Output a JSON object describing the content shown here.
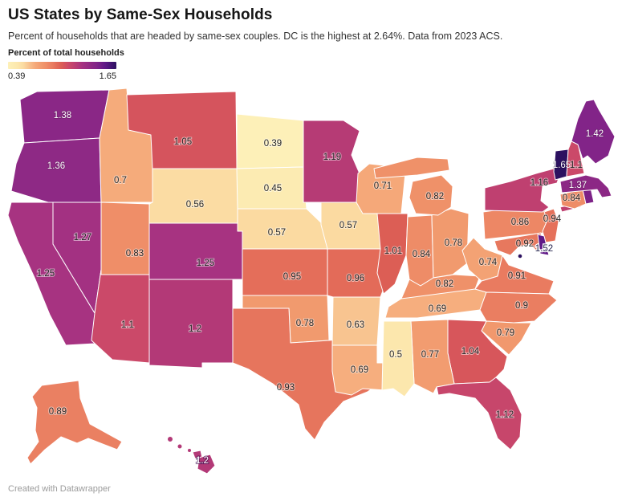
{
  "header": {
    "title": "US States by Same-Sex Households",
    "subtitle": "Percent of households that are headed by same-sex couples. DC is the highest at 2.64%. Data from 2023 ACS."
  },
  "legend": {
    "title": "Percent of total households",
    "min_label": "0.39",
    "max_label": "1.65"
  },
  "footer": {
    "credit": "Created with Datawrapper"
  },
  "chart_data": {
    "type": "choropleth",
    "title": "US States by Same-Sex Households",
    "unit": "percent of households headed by same-sex couples",
    "source_note": "Data from 2023 ACS",
    "scale": {
      "min": 0.39,
      "max": 1.65,
      "legend_position": "top-left",
      "gradient_stops": [
        [
          0.0,
          "#fdf0b8"
        ],
        [
          0.09,
          "#fce7ad"
        ],
        [
          0.14,
          "#fbdba2"
        ],
        [
          0.25,
          "#f5a97a"
        ],
        [
          0.31,
          "#f19a6e"
        ],
        [
          0.35,
          "#ef8e68"
        ],
        [
          0.41,
          "#e97c60"
        ],
        [
          0.45,
          "#e36c59"
        ],
        [
          0.49,
          "#dc5f55"
        ],
        [
          0.52,
          "#d6555c"
        ],
        [
          0.56,
          "#cc4a68"
        ],
        [
          0.61,
          "#bf4070"
        ],
        [
          0.64,
          "#b43a76"
        ],
        [
          0.68,
          "#a83381"
        ],
        [
          0.77,
          "#8e2985"
        ],
        [
          0.82,
          "#812488"
        ],
        [
          0.9,
          "#5e1887"
        ],
        [
          1.0,
          "#2c1160"
        ]
      ]
    },
    "states": [
      {
        "id": "WA",
        "name": "Washington",
        "value": 1.38,
        "label": "1.38",
        "label_style": "light"
      },
      {
        "id": "OR",
        "name": "Oregon",
        "value": 1.36,
        "label": "1.36",
        "label_style": "light"
      },
      {
        "id": "CA",
        "name": "California",
        "value": 1.25,
        "label": "1.25"
      },
      {
        "id": "NV",
        "name": "Nevada",
        "value": 1.27,
        "label": "1.27"
      },
      {
        "id": "ID",
        "name": "Idaho",
        "value": 0.7,
        "label": "0.7"
      },
      {
        "id": "MT",
        "name": "Montana",
        "value": 1.05,
        "label": "1.05"
      },
      {
        "id": "WY",
        "name": "Wyoming",
        "value": 0.56,
        "label": "0.56"
      },
      {
        "id": "UT",
        "name": "Utah",
        "value": 0.83,
        "label": "0.83"
      },
      {
        "id": "CO",
        "name": "Colorado",
        "value": 1.25,
        "label": "1.25"
      },
      {
        "id": "AZ",
        "name": "Arizona",
        "value": 1.1,
        "label": "1.1"
      },
      {
        "id": "NM",
        "name": "New Mexico",
        "value": 1.2,
        "label": "1.2"
      },
      {
        "id": "ND",
        "name": "North Dakota",
        "value": 0.39,
        "label": "0.39"
      },
      {
        "id": "SD",
        "name": "South Dakota",
        "value": 0.45,
        "label": "0.45"
      },
      {
        "id": "NE",
        "name": "Nebraska",
        "value": 0.57,
        "label": "0.57"
      },
      {
        "id": "KS",
        "name": "Kansas",
        "value": 0.95,
        "label": "0.95"
      },
      {
        "id": "OK",
        "name": "Oklahoma",
        "value": 0.78,
        "label": "0.78"
      },
      {
        "id": "TX",
        "name": "Texas",
        "value": 0.93,
        "label": "0.93"
      },
      {
        "id": "MN",
        "name": "Minnesota",
        "value": 1.19,
        "label": "1.19"
      },
      {
        "id": "IA",
        "name": "Iowa",
        "value": 0.57,
        "label": "0.57"
      },
      {
        "id": "MO",
        "name": "Missouri",
        "value": 0.96,
        "label": "0.96"
      },
      {
        "id": "AR",
        "name": "Arkansas",
        "value": 0.63,
        "label": "0.63"
      },
      {
        "id": "LA",
        "name": "Louisiana",
        "value": 0.69,
        "label": "0.69"
      },
      {
        "id": "WI",
        "name": "Wisconsin",
        "value": 0.71,
        "label": "0.71"
      },
      {
        "id": "IL",
        "name": "Illinois",
        "value": 1.01,
        "label": "1.01"
      },
      {
        "id": "MI",
        "name": "Michigan",
        "value": 0.82,
        "label": "0.82"
      },
      {
        "id": "IN",
        "name": "Indiana",
        "value": 0.84,
        "label": "0.84"
      },
      {
        "id": "OH",
        "name": "Ohio",
        "value": 0.78,
        "label": "0.78"
      },
      {
        "id": "KY",
        "name": "Kentucky",
        "value": 0.82,
        "label": "0.82"
      },
      {
        "id": "TN",
        "name": "Tennessee",
        "value": 0.69,
        "label": "0.69"
      },
      {
        "id": "MS",
        "name": "Mississippi",
        "value": 0.5,
        "label": "0.5"
      },
      {
        "id": "AL",
        "name": "Alabama",
        "value": 0.77,
        "label": "0.77"
      },
      {
        "id": "GA",
        "name": "Georgia",
        "value": 1.04,
        "label": "1.04"
      },
      {
        "id": "FL",
        "name": "Florida",
        "value": 1.12,
        "label": "1.12"
      },
      {
        "id": "SC",
        "name": "South Carolina",
        "value": 0.79,
        "label": "0.79"
      },
      {
        "id": "NC",
        "name": "North Carolina",
        "value": 0.9,
        "label": "0.9"
      },
      {
        "id": "VA",
        "name": "Virginia",
        "value": 0.91,
        "label": "0.91"
      },
      {
        "id": "WV",
        "name": "West Virginia",
        "value": 0.74,
        "label": "0.74"
      },
      {
        "id": "MD",
        "name": "Maryland",
        "value": 0.92,
        "label": "0.92"
      },
      {
        "id": "DE",
        "name": "Delaware",
        "value": 1.52,
        "label": "1.52",
        "label_style": "dark-halo"
      },
      {
        "id": "NJ",
        "name": "New Jersey",
        "value": 0.94,
        "label": "0.94"
      },
      {
        "id": "PA",
        "name": "Pennsylvania",
        "value": 0.86,
        "label": "0.86"
      },
      {
        "id": "NY",
        "name": "New York",
        "value": 1.16,
        "label": "1.16"
      },
      {
        "id": "CT",
        "name": "Connecticut",
        "value": 0.84,
        "label": "0.84"
      },
      {
        "id": "RI",
        "name": "Rhode Island",
        "value": null,
        "label": "",
        "fill": "#7d2287"
      },
      {
        "id": "MA",
        "name": "Massachusetts",
        "value": 1.37,
        "label": "1.37",
        "label_style": "light"
      },
      {
        "id": "VT",
        "name": "Vermont",
        "value": 1.65,
        "label": "1.65",
        "label_style": "light"
      },
      {
        "id": "NH",
        "name": "New Hampshire",
        "value": 1.1,
        "label": "1.1"
      },
      {
        "id": "ME",
        "name": "Maine",
        "value": 1.42,
        "label": "1.42",
        "label_style": "light"
      },
      {
        "id": "AK",
        "name": "Alaska",
        "value": 0.89,
        "label": "0.89"
      },
      {
        "id": "HI",
        "name": "Hawaii",
        "value": 1.2,
        "label": "1.2",
        "label_style": "light-halo"
      },
      {
        "id": "DC",
        "name": "District of Columbia",
        "value": 2.64,
        "label": ""
      }
    ]
  }
}
